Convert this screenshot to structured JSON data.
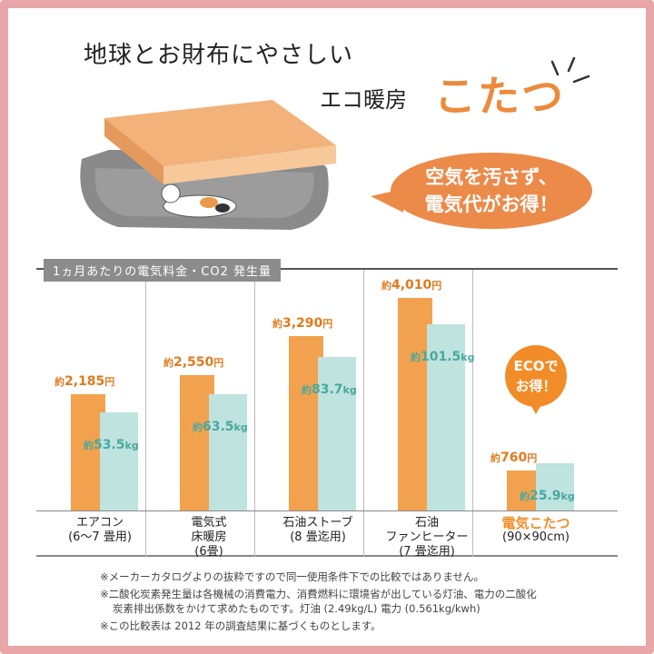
{
  "header": {
    "line1": "地球とお財布にやさしい",
    "line2": "エコ暖房",
    "line3": "こたつ",
    "bubble_l1": "空気を汚さず、",
    "bubble_l2": "電気代がお得！"
  },
  "chart_data": {
    "type": "bar",
    "title": "1ヵ月あたりの電気料金・CO2 発生量",
    "categories": [
      {
        "name": "エアコン",
        "sub": "(6〜7 畳用)"
      },
      {
        "name": "電気式\n床暖房",
        "sub": "(6畳)"
      },
      {
        "name": "石油ストーブ",
        "sub": "(8 畳迄用)"
      },
      {
        "name": "石油\nファンヒーター",
        "sub": "(7 畳迄用)"
      },
      {
        "name": "電気こたつ",
        "sub": "(90×90cm)"
      }
    ],
    "series": [
      {
        "unit": "円",
        "prefix": "約",
        "values": [
          2185,
          2550,
          3290,
          4010,
          760
        ],
        "labels": [
          "2,185",
          "2,550",
          "3,290",
          "4,010",
          "760"
        ],
        "color": "#f2a24e"
      },
      {
        "unit": "kg",
        "prefix": "約",
        "values": [
          53.5,
          63.5,
          83.7,
          101.5,
          25.9
        ],
        "labels": [
          "53.5",
          "63.5",
          "83.7",
          "101.5",
          "25.9"
        ],
        "color": "#bfe3de"
      }
    ],
    "highlight_color": "#f28c28",
    "eco_badge_l1": "ECOで",
    "eco_badge_l2": "お得！"
  },
  "notes": [
    "※メーカーカタログよりの抜粋ですので同一使用条件下での比較ではありません。",
    "※二酸化炭素発生量は各機械の消費電力、消費燃料に環境省が出している灯油、電力の二酸化",
    "炭素排出係数をかけて求めたものです。灯油 (2.49kg/L) 電力 (0.561kg/kwh)",
    "※この比較表は 2012 年の調査結果に基づくものとします。"
  ]
}
